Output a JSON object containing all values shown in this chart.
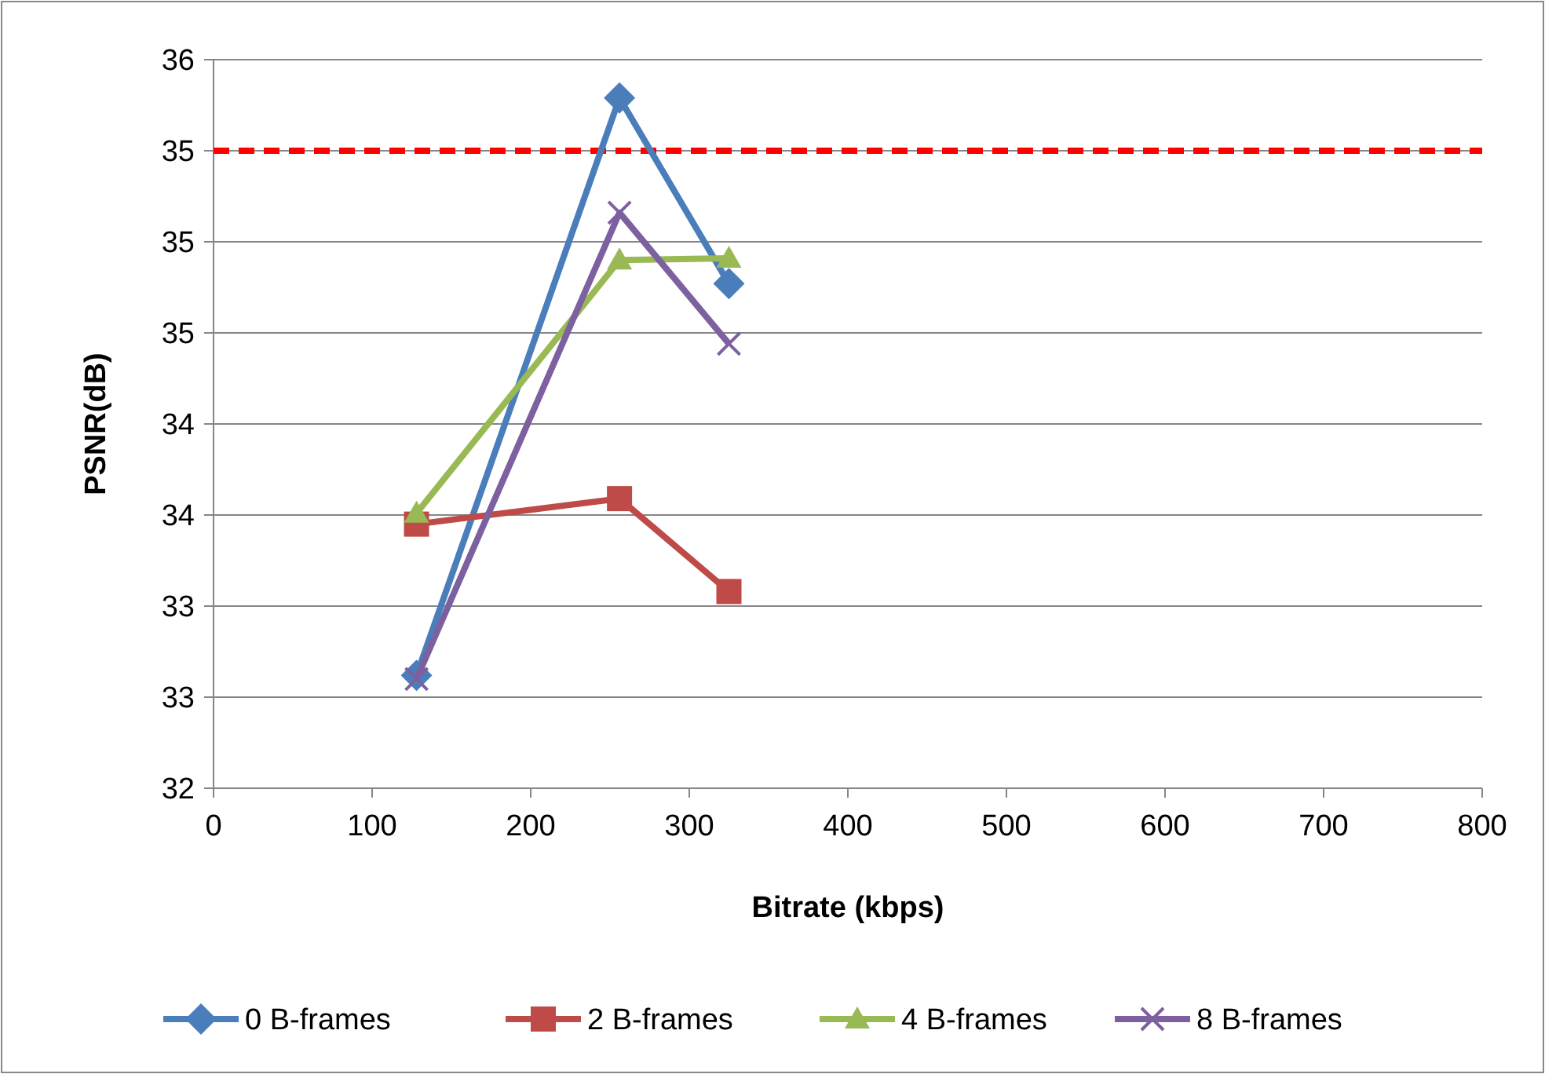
{
  "chart_data": {
    "type": "line",
    "xlabel": "Bitrate (kbps)",
    "ylabel": "PSNR(dB)",
    "xlim": [
      0,
      800
    ],
    "xticks": [
      0,
      100,
      200,
      300,
      400,
      500,
      600,
      700,
      800
    ],
    "ylim": [
      32,
      36
    ],
    "yticks": [
      32,
      {
        "value": 32.5,
        "label": "33"
      },
      33,
      {
        "value": 33.5,
        "label": "34"
      },
      34,
      {
        "value": 34.5,
        "label": "35"
      },
      35,
      {
        "value": 35.5,
        "label": "35"
      },
      36
    ],
    "grid": "y",
    "legend": "bottom",
    "line_style": "solid",
    "ref_lines": [
      {
        "axis": "y",
        "value": 35.5,
        "color": "#ff0000",
        "line_style": "dashed"
      }
    ],
    "series": [
      {
        "name": "0 B-frames",
        "color": "#4a7ebb",
        "marker": "diamond",
        "x": [
          128,
          256,
          325
        ],
        "values": [
          32.62,
          35.79,
          34.77
        ]
      },
      {
        "name": "2 B-frames",
        "color": "#be4b48",
        "marker": "square",
        "x": [
          128,
          256,
          325
        ],
        "values": [
          33.45,
          33.59,
          33.08
        ]
      },
      {
        "name": "4 B-frames",
        "color": "#98b954",
        "marker": "triangle",
        "x": [
          128,
          256,
          325
        ],
        "values": [
          33.51,
          34.9,
          34.91
        ]
      },
      {
        "name": "8 B-frames",
        "color": "#7d60a0",
        "marker": "cross",
        "x": [
          128,
          256,
          325
        ],
        "values": [
          32.6,
          35.16,
          34.44
        ]
      }
    ]
  }
}
